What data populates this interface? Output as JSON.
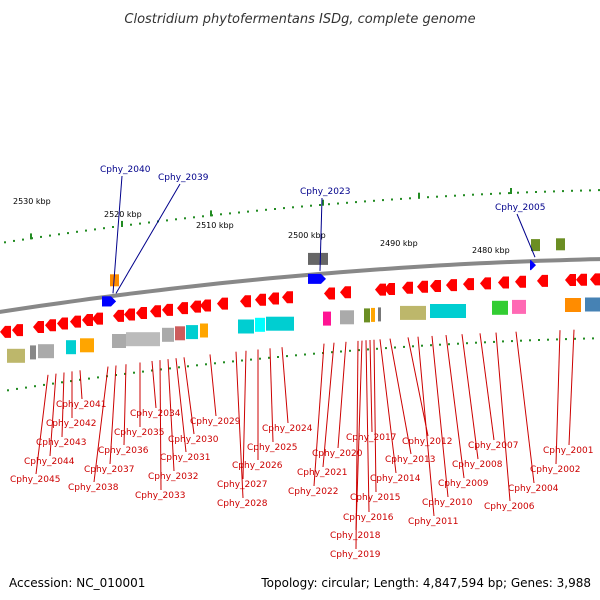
{
  "title": "Clostridium phytofermentans ISDg, complete genome",
  "accession": "Accession: NC_010001",
  "summary": "Topology: circular; Length: 4,847,594 bp; Genes: 3,988",
  "colors": {
    "forward_arrow": "#0000ff",
    "reverse_arrow": "#ff0000",
    "backbone": "#888888",
    "tick_dot": "#228b22",
    "label_line_red": "#cc0000",
    "label_line_blue": "#00008b"
  },
  "kbp_labels": [
    "2530 kbp",
    "2520 kbp",
    "2510 kbp",
    "2500 kbp",
    "2490 kbp",
    "2480 kbp"
  ],
  "forward_genes": [
    "Cphy_2040",
    "Cphy_2039",
    "Cphy_2023",
    "Cphy_2005"
  ],
  "reverse_genes": [
    "Cphy_2045",
    "Cphy_2044",
    "Cphy_2043",
    "Cphy_2042",
    "Cphy_2041",
    "Cphy_2038",
    "Cphy_2037",
    "Cphy_2036",
    "Cphy_2035",
    "Cphy_2034",
    "Cphy_2033",
    "Cphy_2032",
    "Cphy_2031",
    "Cphy_2030",
    "Cphy_2029",
    "Cphy_2028",
    "Cphy_2027",
    "Cphy_2026",
    "Cphy_2025",
    "Cphy_2024",
    "Cphy_2022",
    "Cphy_2021",
    "Cphy_2020",
    "Cphy_2019",
    "Cphy_2018",
    "Cphy_2017",
    "Cphy_2016",
    "Cphy_2015",
    "Cphy_2014",
    "Cphy_2013",
    "Cphy_2012",
    "Cphy_2011",
    "Cphy_2010",
    "Cphy_2009",
    "Cphy_2008",
    "Cphy_2007",
    "Cphy_2006",
    "Cphy_2004",
    "Cphy_2002",
    "Cphy_2001"
  ]
}
